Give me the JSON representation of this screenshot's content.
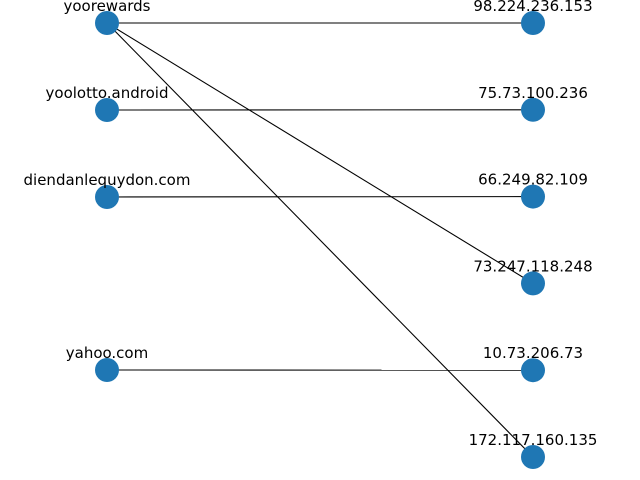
{
  "graph": {
    "node_color": "#1f77b4",
    "edge_color": "#000000",
    "left_nodes": [
      {
        "id": "yoorewards",
        "label": "yoorewards"
      },
      {
        "id": "yoolotto.android",
        "label": "yoolotto.android"
      },
      {
        "id": "diendanlequydon.com",
        "label": "diendanlequydon.com"
      },
      {
        "id": "yahoo.com",
        "label": "yahoo.com"
      }
    ],
    "right_nodes": [
      {
        "id": "98.224.236.153",
        "label": "98.224.236.153"
      },
      {
        "id": "75.73.100.236",
        "label": "75.73.100.236"
      },
      {
        "id": "66.249.82.109",
        "label": "66.249.82.109"
      },
      {
        "id": "73.247.118.248",
        "label": "73.247.118.248"
      },
      {
        "id": "10.73.206.73",
        "label": "10.73.206.73"
      },
      {
        "id": "172.117.160.135",
        "label": "172.117.160.135"
      }
    ],
    "edges": [
      {
        "source": "yoorewards",
        "target": "98.224.236.153"
      },
      {
        "source": "yoorewards",
        "target": "73.247.118.248"
      },
      {
        "source": "yoorewards",
        "target": "172.117.160.135"
      },
      {
        "source": "yoolotto.android",
        "target": "75.73.100.236"
      },
      {
        "source": "diendanlequydon.com",
        "target": "66.249.82.109"
      },
      {
        "source": "yahoo.com",
        "target": "10.73.206.73"
      }
    ]
  }
}
